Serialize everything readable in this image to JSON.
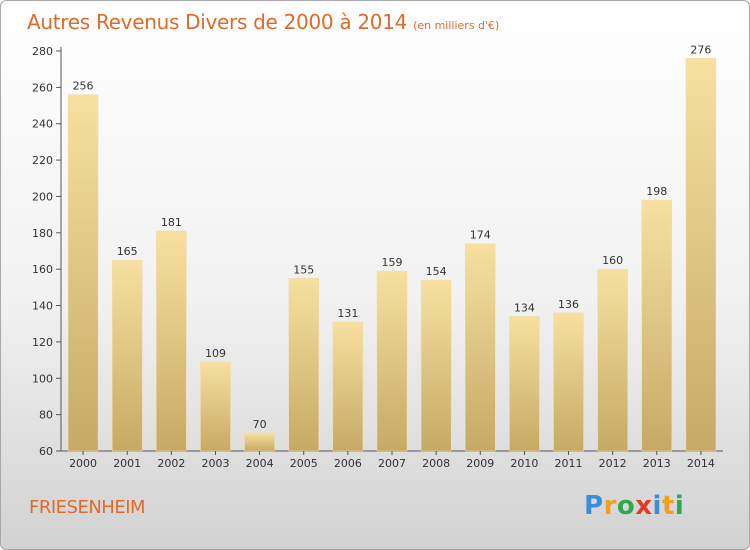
{
  "title": "Autres Revenus Divers de 2000 à 2014",
  "unit": "(en milliers d'€)",
  "place": "FRIESENHEIM",
  "logo": {
    "letters": [
      "P",
      "r",
      "o",
      "x",
      "i",
      "t",
      "i"
    ],
    "colors": [
      "#3a8fd8",
      "#f0a020",
      "#2fa84f",
      "#e03b2a",
      "#3a8fd8",
      "#f0a020",
      "#2fa84f"
    ]
  },
  "colors": {
    "title": "#e06a2a",
    "bar_light": "#f7e0a0",
    "bar_dark": "#c6aa64"
  },
  "chart_data": {
    "type": "bar",
    "categories": [
      "2000",
      "2001",
      "2002",
      "2003",
      "2004",
      "2005",
      "2006",
      "2007",
      "2008",
      "2009",
      "2010",
      "2011",
      "2012",
      "2013",
      "2014"
    ],
    "values": [
      256,
      165,
      181,
      109,
      70,
      155,
      131,
      159,
      154,
      174,
      134,
      136,
      160,
      198,
      276
    ],
    "ylim": [
      60,
      280
    ],
    "yticks": [
      60,
      80,
      100,
      120,
      140,
      160,
      180,
      200,
      220,
      240,
      260,
      280
    ],
    "grid": false
  }
}
